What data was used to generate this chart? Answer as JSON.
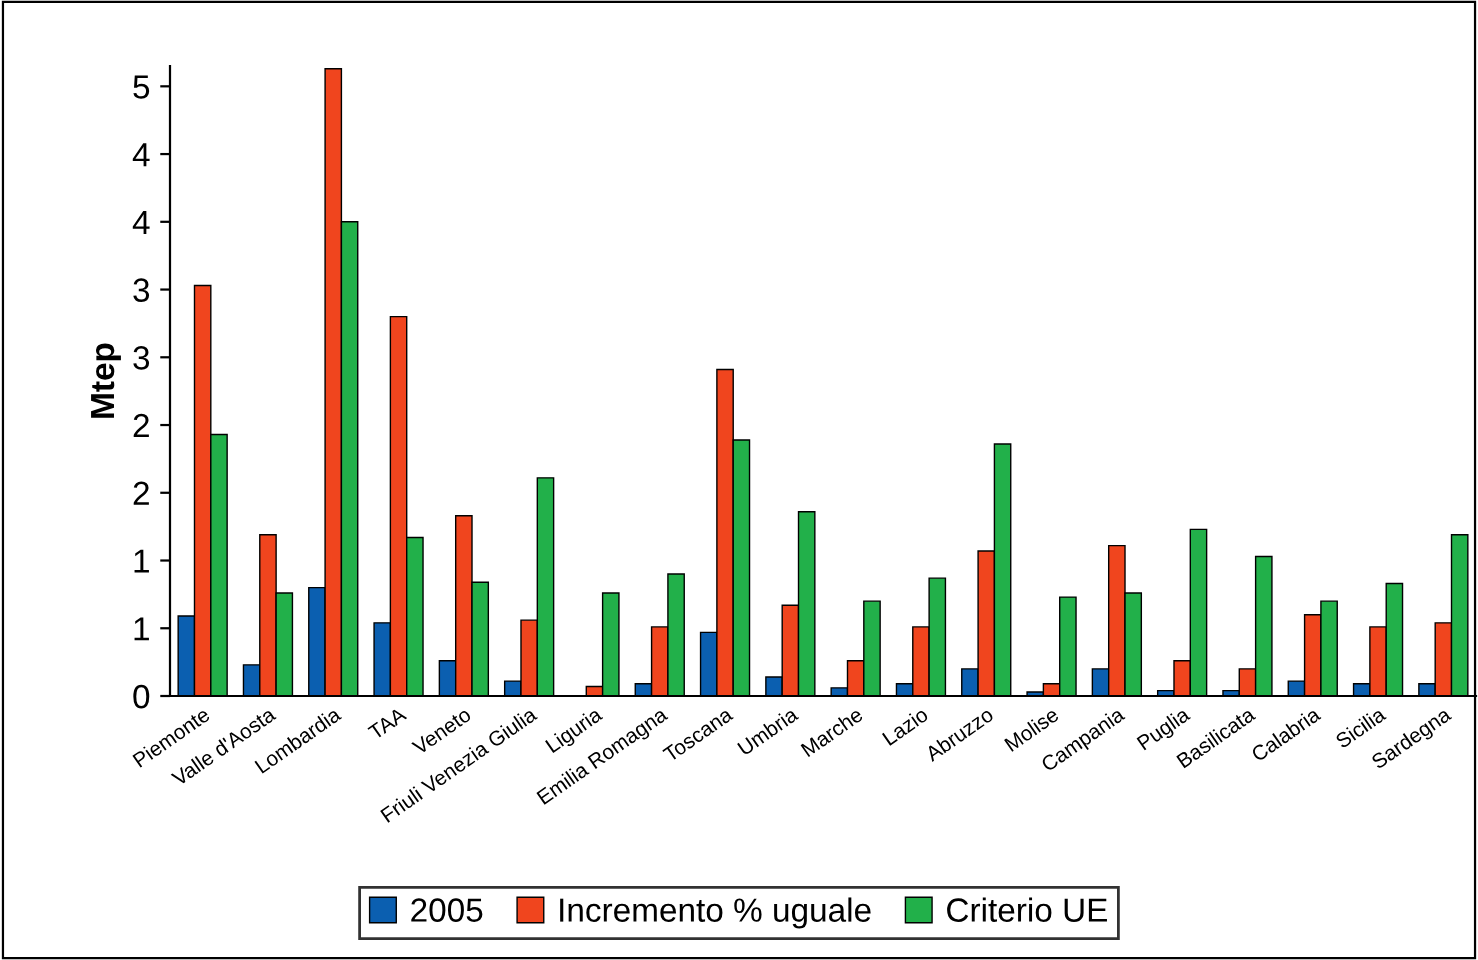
{
  "chart_data": {
    "type": "bar",
    "ylabel": "Mtep",
    "categories": [
      "Piemonte",
      "Valle d'Aosta",
      "Lombardia",
      "TAA",
      "Veneto",
      "Friuli Venezia Giulia",
      "Liguria",
      "Emilia Romagna",
      "Toscana",
      "Umbria",
      "Marche",
      "Lazio",
      "Abruzzo",
      "Molise",
      "Campania",
      "Puglia",
      "Basilicata",
      "Calabria",
      "Sicilia",
      "Sardegna"
    ],
    "series": [
      {
        "name": "2005",
        "color": "#0b5fb0",
        "values": [
          0.59,
          0.23,
          0.8,
          0.54,
          0.26,
          0.11,
          null,
          0.09,
          0.47,
          0.14,
          0.06,
          0.09,
          0.2,
          0.03,
          0.2,
          0.04,
          0.04,
          0.11,
          0.09,
          0.09
        ]
      },
      {
        "name": "Incremento % uguale",
        "color": "#f0451e",
        "values": [
          3.03,
          1.19,
          4.63,
          2.8,
          1.33,
          0.56,
          0.07,
          0.51,
          2.41,
          0.67,
          0.26,
          0.51,
          1.07,
          0.09,
          1.11,
          0.26,
          0.2,
          0.6,
          0.51,
          0.54
        ]
      },
      {
        "name": "Criterio UE",
        "color": "#22b04a",
        "values": [
          1.93,
          0.76,
          3.5,
          1.17,
          0.84,
          1.61,
          0.76,
          0.9,
          1.89,
          1.36,
          0.7,
          0.87,
          1.86,
          0.73,
          0.76,
          1.23,
          1.03,
          0.7,
          0.83,
          1.19
        ]
      }
    ],
    "ylim": [
      0,
      4.65
    ],
    "yticks": [
      0,
      {
        "value": 0.5,
        "label": "1"
      },
      1,
      {
        "value": 1.5,
        "label": "2"
      },
      2,
      {
        "value": 2.5,
        "label": "3"
      },
      3,
      {
        "value": 3.5,
        "label": "4"
      },
      4,
      {
        "value": 4.5,
        "label": "5"
      }
    ],
    "grid": false,
    "legend": "bottom"
  }
}
